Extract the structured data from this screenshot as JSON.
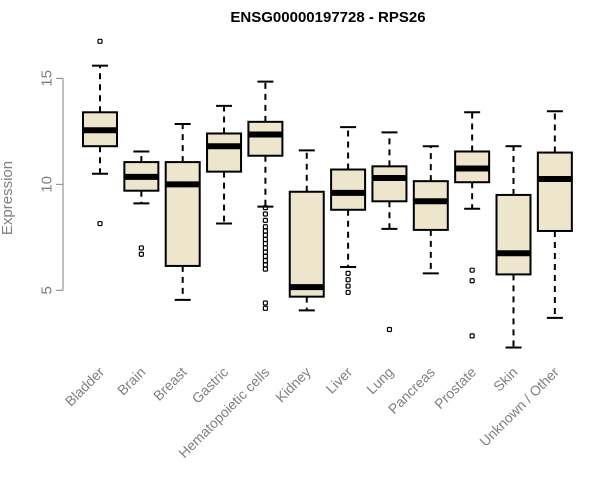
{
  "chart_data": {
    "type": "boxplot",
    "title": "ENSG00000197728 - RPS26",
    "xlabel": "",
    "ylabel": "Expression",
    "ylim": [
      1.9,
      17.0
    ],
    "yticks": [
      5,
      10,
      15
    ],
    "box_fill": "#ede6cd",
    "categories": [
      "Bladder",
      "Brain",
      "Breast",
      "Gastric",
      "Hematopoietic cells",
      "Kidney",
      "Liver",
      "Lung",
      "Pancreas",
      "Prostate",
      "Skin",
      "Unknown / Other"
    ],
    "boxes": [
      {
        "name": "Bladder",
        "whisker_low": 10.5,
        "q1": 11.8,
        "median": 12.55,
        "q3": 13.4,
        "whisker_high": 15.6,
        "outliers": [
          16.75,
          8.15
        ]
      },
      {
        "name": "Brain",
        "whisker_low": 9.1,
        "q1": 9.7,
        "median": 10.35,
        "q3": 11.05,
        "whisker_high": 11.55,
        "outliers": [
          7.0,
          6.7
        ]
      },
      {
        "name": "Breast",
        "whisker_low": 4.55,
        "q1": 6.15,
        "median": 10.0,
        "q3": 11.05,
        "whisker_high": 12.85,
        "outliers": []
      },
      {
        "name": "Gastric",
        "whisker_low": 8.15,
        "q1": 10.6,
        "median": 11.8,
        "q3": 12.4,
        "whisker_high": 13.7,
        "outliers": []
      },
      {
        "name": "Hematopoietic cells",
        "whisker_low": 8.95,
        "q1": 11.35,
        "median": 12.35,
        "q3": 12.95,
        "whisker_high": 14.85,
        "outliers": [
          8.9,
          8.6,
          8.3,
          8.0,
          7.8,
          7.6,
          7.4,
          7.2,
          7.0,
          6.8,
          6.6,
          6.4,
          6.2,
          6.0,
          4.4,
          4.15
        ]
      },
      {
        "name": "Kidney",
        "whisker_low": 4.05,
        "q1": 4.7,
        "median": 5.15,
        "q3": 9.65,
        "whisker_high": 11.6,
        "outliers": []
      },
      {
        "name": "Liver",
        "whisker_low": 6.1,
        "q1": 8.8,
        "median": 9.6,
        "q3": 10.7,
        "whisker_high": 12.7,
        "outliers": [
          5.8,
          5.5,
          5.2,
          4.9
        ]
      },
      {
        "name": "Lung",
        "whisker_low": 7.9,
        "q1": 9.2,
        "median": 10.3,
        "q3": 10.85,
        "whisker_high": 12.45,
        "outliers": [
          3.15
        ]
      },
      {
        "name": "Pancreas",
        "whisker_low": 5.8,
        "q1": 7.85,
        "median": 9.2,
        "q3": 10.15,
        "whisker_high": 11.8,
        "outliers": []
      },
      {
        "name": "Prostate",
        "whisker_low": 8.85,
        "q1": 10.1,
        "median": 10.75,
        "q3": 11.55,
        "whisker_high": 13.4,
        "outliers": [
          5.95,
          5.45,
          2.85
        ]
      },
      {
        "name": "Skin",
        "whisker_low": 2.3,
        "q1": 5.75,
        "median": 6.75,
        "q3": 9.5,
        "whisker_high": 11.8,
        "outliers": []
      },
      {
        "name": "Unknown / Other",
        "whisker_low": 3.7,
        "q1": 7.8,
        "median": 10.25,
        "q3": 11.5,
        "whisker_high": 13.45,
        "outliers": []
      }
    ]
  }
}
